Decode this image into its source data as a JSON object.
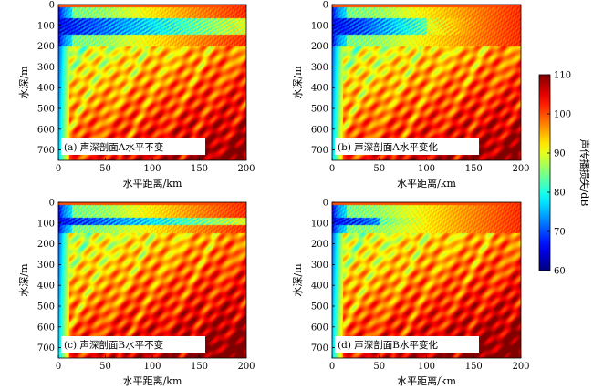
{
  "chart_data": {
    "type": "heatmap",
    "panels": [
      {
        "id": "a",
        "label": "(a) 声深剖面A水平不变",
        "xlabel": "水平距离/km",
        "ylabel": "水深/m",
        "xlim": [
          0,
          200
        ],
        "ylim": [
          750,
          0
        ],
        "xticks": [
          0,
          50,
          100,
          150,
          200
        ],
        "yticks": [
          0,
          100,
          200,
          300,
          400,
          500,
          600,
          700
        ],
        "bottom_depth_m": 200,
        "profile": "A",
        "range_dependent": false
      },
      {
        "id": "b",
        "label": "(b) 声深剖面A水平变化",
        "xlabel": "水平距离/km",
        "ylabel": "水深/m",
        "xlim": [
          0,
          200
        ],
        "ylim": [
          750,
          0
        ],
        "xticks": [
          0,
          50,
          100,
          150,
          200
        ],
        "yticks": [
          0,
          100,
          200,
          300,
          400,
          500,
          600,
          700
        ],
        "bottom_depth_m": 200,
        "profile": "A",
        "range_dependent": true
      },
      {
        "id": "c",
        "label": "(c) 声深剖面B水平不变",
        "xlabel": "水平距离/km",
        "ylabel": "水深/m",
        "xlim": [
          0,
          200
        ],
        "ylim": [
          750,
          0
        ],
        "xticks": [
          0,
          50,
          100,
          150,
          200
        ],
        "yticks": [
          0,
          100,
          200,
          300,
          400,
          500,
          600,
          700
        ],
        "bottom_depth_m": 150,
        "profile": "B",
        "range_dependent": false
      },
      {
        "id": "d",
        "label": "(d) 声深剖面B水平变化",
        "xlabel": "水平距离/km",
        "ylabel": "水深/m",
        "xlim": [
          0,
          200
        ],
        "ylim": [
          750,
          0
        ],
        "xticks": [
          0,
          50,
          100,
          150,
          200
        ],
        "yticks": [
          0,
          100,
          200,
          300,
          400,
          500,
          600,
          700
        ],
        "bottom_depth_m": 150,
        "profile": "B",
        "range_dependent": true
      }
    ],
    "colorbar": {
      "label": "声传播损失/dB",
      "range": [
        60,
        110
      ],
      "ticks": [
        60,
        70,
        80,
        90,
        100,
        110
      ],
      "colormap": "jet"
    }
  }
}
